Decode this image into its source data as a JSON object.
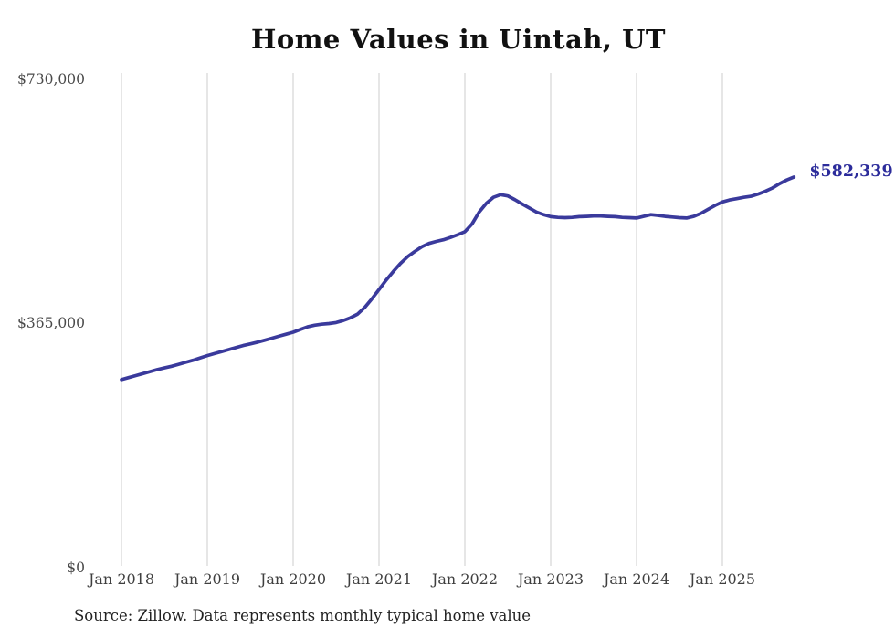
{
  "header": {
    "title": "Home Values in Uintah, UT"
  },
  "chart_data": {
    "type": "line",
    "title": "Home Values in Uintah, UT",
    "series_name": "Monthly typical home value",
    "x": {
      "start": "2018-01",
      "end": "2025-11",
      "interval": "month",
      "count": 95
    },
    "values": [
      279000,
      282000,
      285000,
      288000,
      291000,
      294000,
      296500,
      299000,
      302000,
      305000,
      308000,
      311500,
      315000,
      318000,
      321000,
      324000,
      327000,
      330000,
      332500,
      335000,
      338000,
      341000,
      344000,
      347000,
      350000,
      354000,
      358000,
      360500,
      362000,
      363000,
      364500,
      367500,
      371500,
      377000,
      387000,
      400000,
      414000,
      428000,
      441000,
      453000,
      463000,
      471000,
      478000,
      483000,
      486000,
      488500,
      492000,
      496000,
      500500,
      512000,
      530000,
      543000,
      552000,
      556000,
      554000,
      548500,
      542000,
      536000,
      530000,
      526000,
      523000,
      522000,
      521500,
      522000,
      523000,
      523500,
      524000,
      524000,
      523500,
      523000,
      522000,
      521500,
      521000,
      523500,
      526000,
      525000,
      523500,
      522500,
      521500,
      521000,
      523500,
      528000,
      534000,
      540000,
      545000,
      548000,
      550000,
      552000,
      553500,
      557000,
      561000,
      566000,
      572500,
      578000,
      582339
    ],
    "x_tick_labels": [
      "Jan 2018",
      "Jan 2019",
      "Jan 2020",
      "Jan 2021",
      "Jan 2022",
      "Jan 2023",
      "Jan 2024",
      "Jan 2025"
    ],
    "y_ticks": [
      {
        "label": "$0",
        "value": 0
      },
      {
        "label": "$365,000",
        "value": 365000
      },
      {
        "label": "$730,000",
        "value": 730000
      }
    ],
    "ylim": [
      0,
      730000
    ],
    "grid": "vertical-only",
    "legend": "none",
    "end_label": "$582,339",
    "end_value": 582339
  },
  "colors": {
    "line": "#3a3a9c",
    "end_label": "#2c2c9b",
    "grid": "#cccccc",
    "title": "#111111",
    "axis_label": "#4a4a4a",
    "source_text": "#222222",
    "background": "#ffffff"
  },
  "footer": {
    "source": "Source: Zillow. Data represents monthly typical home value"
  }
}
